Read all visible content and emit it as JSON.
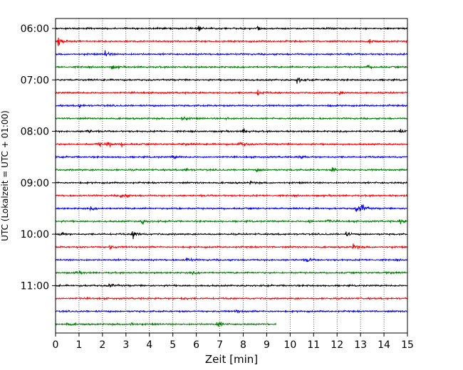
{
  "chart_data": {
    "type": "line",
    "title": "",
    "xlabel": "Zeit  [min]",
    "ylabel": "UTC (Lokalzeit = UTC + 01:00)",
    "xlim": [
      0,
      15
    ],
    "x_ticks": [
      "0",
      "1",
      "2",
      "3",
      "4",
      "5",
      "6",
      "7",
      "8",
      "9",
      "10",
      "11",
      "12",
      "13",
      "14",
      "15"
    ],
    "y_tick_labels": [
      "06:00",
      "07:00",
      "08:00",
      "09:00",
      "10:00",
      "11:00"
    ],
    "grid": "vertical dotted at each minute",
    "trace_interval_minutes": 15,
    "trace_colors_cycle": [
      "#000000",
      "#ff0000",
      "#0000ff",
      "#008000"
    ],
    "traces": [
      {
        "start": "06:00",
        "color": "#000000",
        "end_min": 15,
        "events": [
          [
            6.1,
            0.6
          ],
          [
            8.6,
            0.6
          ],
          [
            11.5,
            0.4
          ]
        ]
      },
      {
        "start": "06:15",
        "color": "#ff0000",
        "end_min": 15,
        "events": [
          [
            0.1,
            1.4
          ],
          [
            13.4,
            0.4
          ]
        ]
      },
      {
        "start": "06:30",
        "color": "#0000ff",
        "end_min": 15,
        "events": [
          [
            2.1,
            1.0
          ]
        ]
      },
      {
        "start": "06:45",
        "color": "#008000",
        "end_min": 15,
        "events": [
          [
            2.4,
            0.7
          ],
          [
            13.3,
            0.6
          ]
        ]
      },
      {
        "start": "07:00",
        "color": "#000000",
        "end_min": 15,
        "events": [
          [
            10.3,
            1.0
          ]
        ]
      },
      {
        "start": "07:15",
        "color": "#ff0000",
        "end_min": 15,
        "events": [
          [
            8.6,
            0.9
          ],
          [
            12.1,
            0.4
          ]
        ]
      },
      {
        "start": "07:30",
        "color": "#0000ff",
        "end_min": 15,
        "events": [
          [
            1.0,
            0.5
          ],
          [
            11.6,
            0.4
          ]
        ]
      },
      {
        "start": "07:45",
        "color": "#008000",
        "end_min": 15,
        "events": [
          [
            5.4,
            0.8
          ],
          [
            7.3,
            0.4
          ]
        ]
      },
      {
        "start": "08:00",
        "color": "#000000",
        "end_min": 15,
        "events": [
          [
            1.3,
            0.7
          ],
          [
            8.0,
            0.8
          ],
          [
            14.7,
            0.7
          ]
        ]
      },
      {
        "start": "08:15",
        "color": "#ff0000",
        "end_min": 15,
        "events": [
          [
            1.8,
            0.9
          ],
          [
            2.2,
            0.9
          ],
          [
            2.8,
            0.5
          ],
          [
            5.4,
            0.5
          ],
          [
            7.8,
            0.5
          ],
          [
            8.0,
            0.5
          ]
        ]
      },
      {
        "start": "08:30",
        "color": "#0000ff",
        "end_min": 15,
        "events": [
          [
            5.0,
            0.5
          ],
          [
            10.4,
            0.6
          ]
        ]
      },
      {
        "start": "08:45",
        "color": "#008000",
        "end_min": 15,
        "events": [
          [
            5.5,
            0.7
          ],
          [
            8.6,
            0.5
          ],
          [
            11.8,
            0.8
          ]
        ]
      },
      {
        "start": "09:00",
        "color": "#000000",
        "end_min": 15,
        "events": [
          [
            8.3,
            0.4
          ]
        ]
      },
      {
        "start": "09:15",
        "color": "#ff0000",
        "end_min": 15,
        "events": [
          [
            2.8,
            1.0
          ]
        ]
      },
      {
        "start": "09:30",
        "color": "#0000ff",
        "end_min": 15,
        "events": [
          [
            12.8,
            0.9
          ],
          [
            13.0,
            1.8
          ],
          [
            1.5,
            0.4
          ],
          [
            5.1,
            0.4
          ]
        ]
      },
      {
        "start": "09:45",
        "color": "#008000",
        "end_min": 15,
        "events": [
          [
            3.7,
            0.8
          ],
          [
            10.8,
            0.6
          ],
          [
            11.6,
            0.5
          ],
          [
            14.7,
            0.9
          ]
        ]
      },
      {
        "start": "10:00",
        "color": "#000000",
        "end_min": 15,
        "events": [
          [
            0.2,
            0.9
          ],
          [
            3.3,
            1.4
          ],
          [
            12.4,
            0.6
          ]
        ]
      },
      {
        "start": "10:15",
        "color": "#ff0000",
        "end_min": 15,
        "events": [
          [
            2.3,
            0.6
          ],
          [
            12.7,
            0.9
          ]
        ]
      },
      {
        "start": "10:30",
        "color": "#0000ff",
        "end_min": 15,
        "events": [
          [
            5.6,
            0.8
          ],
          [
            10.7,
            0.6
          ]
        ]
      },
      {
        "start": "10:45",
        "color": "#008000",
        "end_min": 15,
        "events": [
          [
            0.9,
            0.5
          ],
          [
            5.8,
            0.4
          ],
          [
            14.1,
            0.5
          ]
        ]
      },
      {
        "start": "11:00",
        "color": "#000000",
        "end_min": 15,
        "events": [
          [
            2.3,
            0.8
          ]
        ]
      },
      {
        "start": "11:15",
        "color": "#ff0000",
        "end_min": 15,
        "events": [
          [
            5.4,
            0.4
          ]
        ]
      },
      {
        "start": "11:30",
        "color": "#0000ff",
        "end_min": 15,
        "events": [
          [
            7.7,
            0.6
          ]
        ]
      },
      {
        "start": "11:45",
        "color": "#008000",
        "end_min": 9.4,
        "events": [
          [
            0.5,
            0.5
          ],
          [
            3.2,
            0.5
          ],
          [
            6.9,
            1.0
          ]
        ]
      }
    ]
  }
}
